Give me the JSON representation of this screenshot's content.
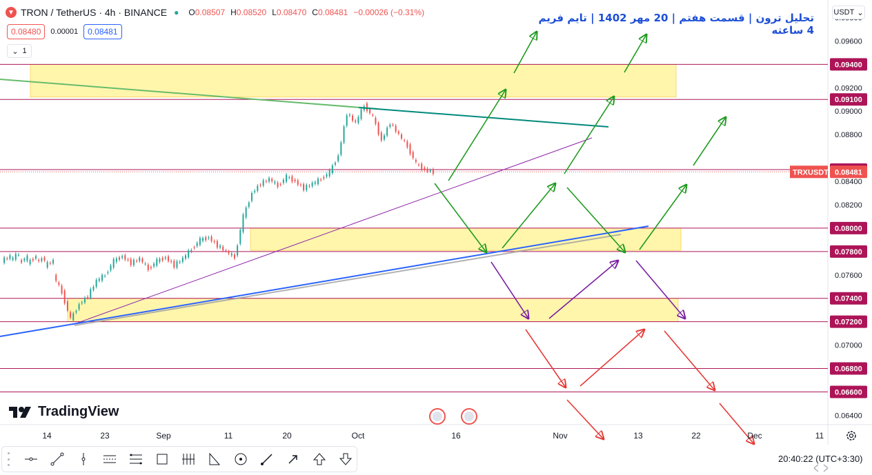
{
  "header": {
    "symbol_icon": "tron-icon",
    "title": "TRON / TetherUS · 4h · BINANCE",
    "ohlc": {
      "open_label": "O",
      "open": "0.08507",
      "high_label": "H",
      "high": "0.08520",
      "low_label": "L",
      "low": "0.08470",
      "close_label": "C",
      "close": "0.08481",
      "change": "−0.00026 (−0.31%)"
    },
    "sell_price": "0.08480",
    "spread": "0.00001",
    "buy_price": "0.08481",
    "indicator_count": "1"
  },
  "annotation_title": "تحلیل ترون | قسمت هفتم | 20 مهر 1402 | تایم فریم 4 ساعته",
  "currency": "USDT",
  "brand": "TradingView",
  "clock": "20:40:22",
  "timezone": "(UTC+3:30)",
  "chart_data": {
    "type": "candlestick",
    "symbol": "TRXUSDT",
    "last_price": 0.08481,
    "ylim": [
      0.0632,
      0.0995
    ],
    "y_ticks": [
      "0.09800",
      "0.09600",
      "0.09400",
      "0.09200",
      "0.09100",
      "0.09000",
      "0.08800",
      "0.08500",
      "0.08481",
      "0.08400",
      "0.08200",
      "0.08000",
      "0.07800",
      "0.07600",
      "0.07400",
      "0.07200",
      "0.07000",
      "0.06800",
      "0.06600",
      "0.06400"
    ],
    "highlighted_levels": [
      "0.09400",
      "0.09100",
      "0.08500",
      "0.08000",
      "0.07800",
      "0.07400",
      "0.07200",
      "0.06800",
      "0.06600"
    ],
    "x_ticks": [
      "14",
      "23",
      "Sep",
      "11",
      "20",
      "Oct",
      "16",
      "Nov",
      "13",
      "22",
      "Dec",
      "11"
    ],
    "zones": [
      {
        "from": 0.0912,
        "to": 0.094
      },
      {
        "from": 0.0781,
        "to": 0.08
      },
      {
        "from": 0.072,
        "to": 0.074
      }
    ],
    "price_path": [
      [
        0.0772,
        0.0776
      ],
      [
        0.0773,
        0.0778
      ],
      [
        0.0771,
        0.0775
      ],
      [
        0.077,
        0.0776
      ],
      [
        0.0772,
        0.0774
      ],
      [
        0.0768,
        0.0772
      ],
      [
        0.076,
        0.0745
      ],
      [
        0.0745,
        0.0722
      ],
      [
        0.0722,
        0.0735
      ],
      [
        0.0735,
        0.0742
      ],
      [
        0.0742,
        0.0755
      ],
      [
        0.0755,
        0.076
      ],
      [
        0.076,
        0.0772
      ],
      [
        0.0772,
        0.0776
      ],
      [
        0.0776,
        0.077
      ],
      [
        0.077,
        0.0774
      ],
      [
        0.0774,
        0.0765
      ],
      [
        0.0765,
        0.0772
      ],
      [
        0.0772,
        0.0775
      ],
      [
        0.0775,
        0.0768
      ],
      [
        0.0768,
        0.0774
      ],
      [
        0.0774,
        0.0782
      ],
      [
        0.0782,
        0.079
      ],
      [
        0.079,
        0.0792
      ],
      [
        0.0792,
        0.0785
      ],
      [
        0.0785,
        0.078
      ],
      [
        0.078,
        0.0775
      ],
      [
        0.0775,
        0.081
      ],
      [
        0.081,
        0.083
      ],
      [
        0.083,
        0.0838
      ],
      [
        0.0838,
        0.0842
      ],
      [
        0.0842,
        0.0836
      ],
      [
        0.0836,
        0.0844
      ],
      [
        0.0844,
        0.084
      ],
      [
        0.084,
        0.0834
      ],
      [
        0.0834,
        0.0838
      ],
      [
        0.0838,
        0.0842
      ],
      [
        0.0842,
        0.0848
      ],
      [
        0.0848,
        0.0862
      ],
      [
        0.0862,
        0.0898
      ],
      [
        0.0898,
        0.089
      ],
      [
        0.089,
        0.0905
      ],
      [
        0.0905,
        0.0895
      ],
      [
        0.0895,
        0.0875
      ],
      [
        0.0875,
        0.089
      ],
      [
        0.089,
        0.088
      ],
      [
        0.088,
        0.087
      ],
      [
        0.087,
        0.0855
      ],
      [
        0.0855,
        0.085
      ],
      [
        0.085,
        0.0848
      ]
    ]
  }
}
